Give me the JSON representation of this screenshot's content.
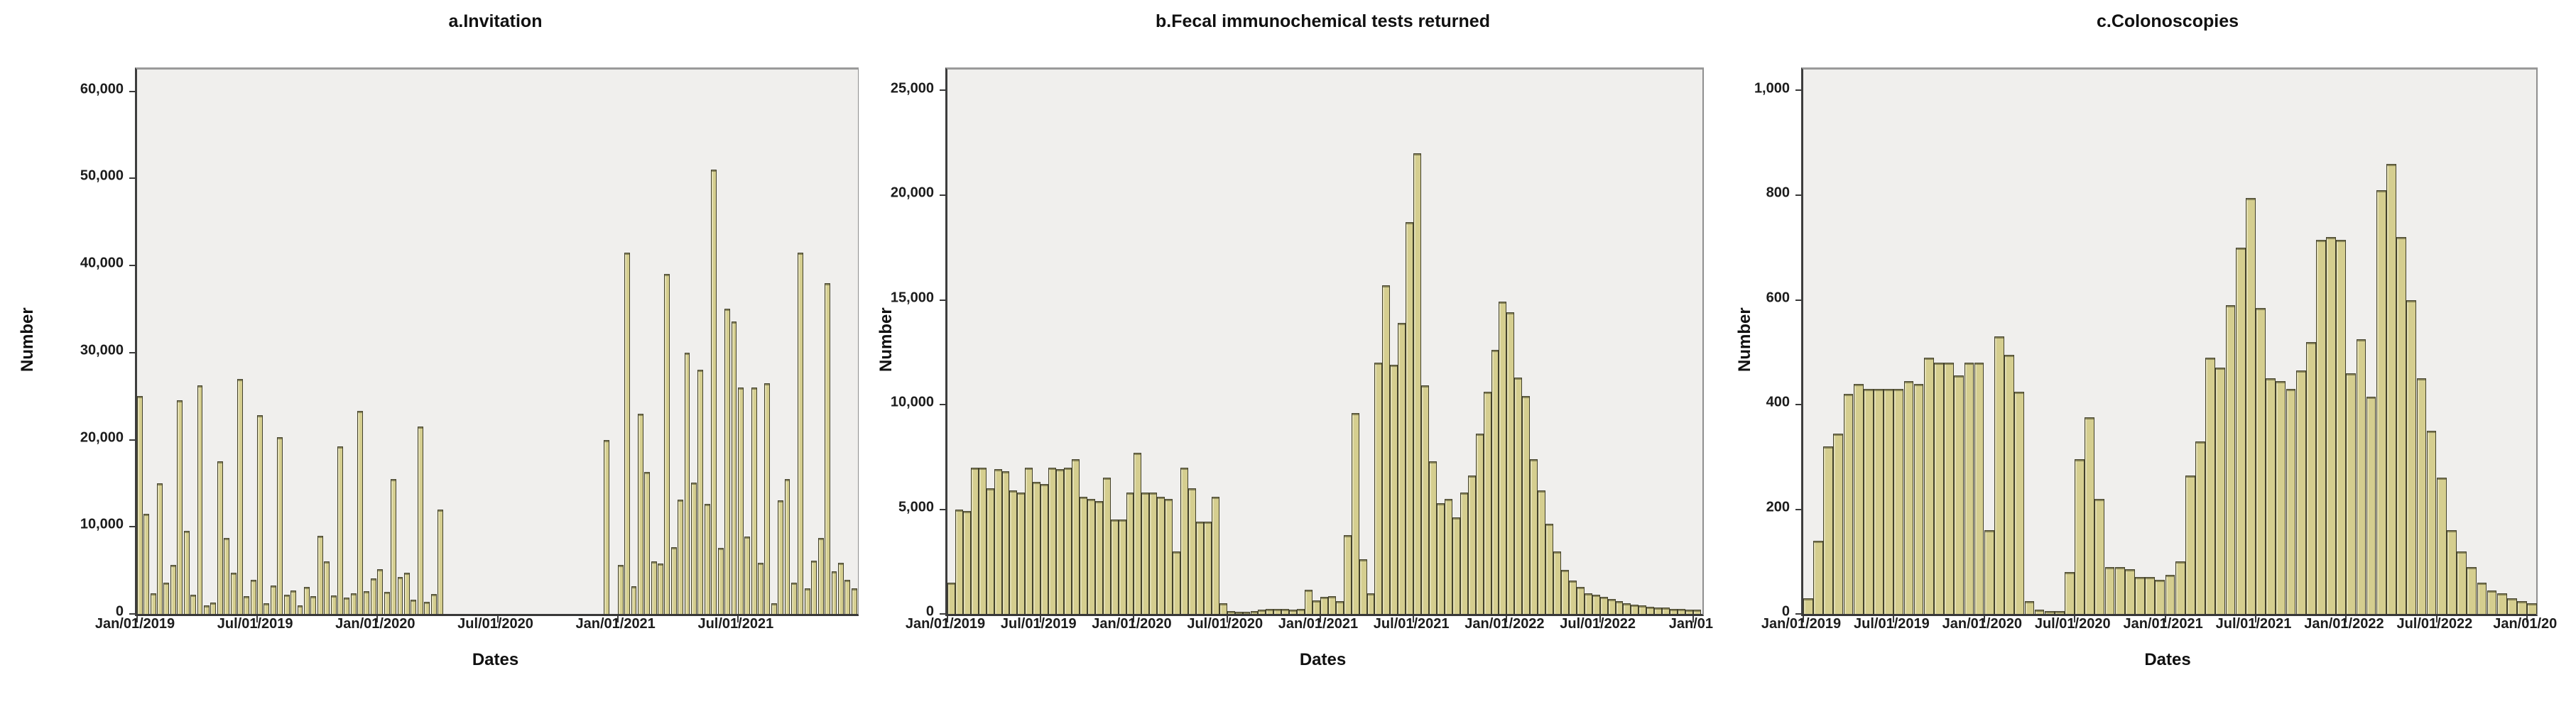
{
  "figure": {
    "kind": "three-panel statistical bar chart (SPSS style)",
    "background": "#ffffff",
    "panel_count": 3
  },
  "styles": {
    "bar_fill": "#d5ce8f",
    "bar_border": "#43412b",
    "plot_background": "#f0efed",
    "frame_color": "#8f8f8f",
    "axis_color": "#3a3a3a",
    "text_color": "#111111"
  },
  "chart_data": [
    {
      "type": "bar",
      "panel": "a",
      "title": "a.Invitation",
      "xlabel": "Dates",
      "ylabel": "Number",
      "ylim": [
        0,
        62500
      ],
      "grid": false,
      "legend": false,
      "x_origin_date": "Jan/01/2019",
      "x_unit": "months since Jan/01/2019",
      "xlim_months": [
        0,
        36
      ],
      "bar_width_months": 0.28,
      "yticks": [
        {
          "v": 60000,
          "label": "60,000"
        },
        {
          "v": 50000,
          "label": "50,000"
        },
        {
          "v": 40000,
          "label": "40,000"
        },
        {
          "v": 30000,
          "label": "30,000"
        },
        {
          "v": 20000,
          "label": "20,000"
        },
        {
          "v": 10000,
          "label": "10,000"
        },
        {
          "v": 0,
          "label": "0"
        }
      ],
      "xticks": [
        {
          "m": 0,
          "label": "Jan/01/2019"
        },
        {
          "m": 6,
          "label": "Jul/01/2019"
        },
        {
          "m": 12,
          "label": "Jan/01/2020"
        },
        {
          "m": 18,
          "label": "Jul/01/2020"
        },
        {
          "m": 24,
          "label": "Jan/01/2021"
        },
        {
          "m": 30,
          "label": "Jul/01/2021"
        }
      ],
      "bars": [
        [
          0,
          25000
        ],
        [
          0.33,
          11500
        ],
        [
          0.67,
          2400
        ],
        [
          1,
          15000
        ],
        [
          1.33,
          3600
        ],
        [
          1.67,
          5600
        ],
        [
          2,
          24500
        ],
        [
          2.33,
          9500
        ],
        [
          2.67,
          2200
        ],
        [
          3,
          26200
        ],
        [
          3.33,
          1000
        ],
        [
          3.67,
          1300
        ],
        [
          4,
          17500
        ],
        [
          4.33,
          8700
        ],
        [
          4.67,
          4700
        ],
        [
          5,
          27000
        ],
        [
          5.33,
          2000
        ],
        [
          5.67,
          3900
        ],
        [
          6,
          22800
        ],
        [
          6.33,
          1200
        ],
        [
          6.67,
          3300
        ],
        [
          7,
          20300
        ],
        [
          7.33,
          2200
        ],
        [
          7.67,
          2700
        ],
        [
          8,
          1000
        ],
        [
          8.33,
          3100
        ],
        [
          8.67,
          2000
        ],
        [
          9,
          9000
        ],
        [
          9.33,
          6000
        ],
        [
          9.67,
          2100
        ],
        [
          10,
          19200
        ],
        [
          10.33,
          1900
        ],
        [
          10.67,
          2400
        ],
        [
          11,
          23300
        ],
        [
          11.33,
          2600
        ],
        [
          11.67,
          4100
        ],
        [
          12,
          5100
        ],
        [
          12.33,
          2500
        ],
        [
          12.67,
          15500
        ],
        [
          13,
          4200
        ],
        [
          13.33,
          4700
        ],
        [
          13.67,
          1600
        ],
        [
          14,
          21500
        ],
        [
          14.33,
          1400
        ],
        [
          14.67,
          2300
        ],
        [
          15,
          12000
        ],
        [
          23.3,
          20000
        ],
        [
          24,
          5600
        ],
        [
          24.33,
          41500
        ],
        [
          24.67,
          3200
        ],
        [
          25,
          23000
        ],
        [
          25.33,
          16300
        ],
        [
          25.67,
          6000
        ],
        [
          26,
          5800
        ],
        [
          26.33,
          39000
        ],
        [
          26.67,
          7700
        ],
        [
          27,
          13100
        ],
        [
          27.33,
          30000
        ],
        [
          27.67,
          15100
        ],
        [
          28,
          28000
        ],
        [
          28.33,
          12600
        ],
        [
          28.67,
          51000
        ],
        [
          29,
          7600
        ],
        [
          29.33,
          35000
        ],
        [
          29.67,
          33600
        ],
        [
          30,
          26000
        ],
        [
          30.33,
          8900
        ],
        [
          30.67,
          26000
        ],
        [
          31,
          5900
        ],
        [
          31.33,
          26500
        ],
        [
          31.67,
          1200
        ],
        [
          32,
          13000
        ],
        [
          32.33,
          15500
        ],
        [
          32.67,
          3600
        ],
        [
          33,
          41500
        ],
        [
          33.33,
          2900
        ],
        [
          33.67,
          6100
        ],
        [
          34,
          8700
        ],
        [
          34.33,
          38000
        ],
        [
          34.67,
          4900
        ],
        [
          35,
          5900
        ],
        [
          35.33,
          3900
        ],
        [
          35.67,
          2900
        ]
      ]
    },
    {
      "type": "bar",
      "panel": "b",
      "title": "b.Fecal immunochemical tests returned",
      "xlabel": "Dates",
      "ylabel": "Number",
      "ylim": [
        0,
        26000
      ],
      "grid": false,
      "legend": false,
      "x_origin_date": "Jan/01/2019",
      "x_unit": "months since Jan/01/2019",
      "xlim_months": [
        0,
        48.6
      ],
      "bar_width_months": 0.5,
      "yticks": [
        {
          "v": 25000,
          "label": "25,000"
        },
        {
          "v": 20000,
          "label": "20,000"
        },
        {
          "v": 15000,
          "label": "15,000"
        },
        {
          "v": 10000,
          "label": "10,000"
        },
        {
          "v": 5000,
          "label": "5,000"
        },
        {
          "v": 0,
          "label": "0"
        }
      ],
      "xticks": [
        {
          "m": 0,
          "label": "Jan/01/2019"
        },
        {
          "m": 6,
          "label": "Jul/01/2019"
        },
        {
          "m": 12,
          "label": "Jan/01/2020"
        },
        {
          "m": 18,
          "label": "Jul/01/2020"
        },
        {
          "m": 24,
          "label": "Jan/01/2021"
        },
        {
          "m": 30,
          "label": "Jul/01/2021"
        },
        {
          "m": 36,
          "label": "Jan/01/2022"
        },
        {
          "m": 42,
          "label": "Jul/01/2022"
        },
        {
          "m": 48,
          "label": "Jan/01"
        }
      ],
      "bars": [
        [
          0,
          1500
        ],
        [
          0.5,
          5000
        ],
        [
          1,
          4900
        ],
        [
          1.5,
          7000
        ],
        [
          2,
          7000
        ],
        [
          2.5,
          6000
        ],
        [
          3,
          6900
        ],
        [
          3.5,
          6800
        ],
        [
          4,
          5900
        ],
        [
          4.5,
          5800
        ],
        [
          5,
          7000
        ],
        [
          5.5,
          6300
        ],
        [
          6,
          6200
        ],
        [
          6.5,
          7000
        ],
        [
          7,
          6900
        ],
        [
          7.5,
          7000
        ],
        [
          8,
          7400
        ],
        [
          8.5,
          5600
        ],
        [
          9,
          5500
        ],
        [
          9.5,
          5400
        ],
        [
          10,
          6500
        ],
        [
          10.5,
          4500
        ],
        [
          11,
          4500
        ],
        [
          11.5,
          5800
        ],
        [
          12,
          7700
        ],
        [
          12.5,
          5800
        ],
        [
          13,
          5800
        ],
        [
          13.5,
          5600
        ],
        [
          14,
          5500
        ],
        [
          14.5,
          3000
        ],
        [
          15,
          7000
        ],
        [
          15.5,
          6000
        ],
        [
          16,
          4400
        ],
        [
          16.5,
          4400
        ],
        [
          17,
          5600
        ],
        [
          17.5,
          500
        ],
        [
          18,
          150
        ],
        [
          18.5,
          100
        ],
        [
          19,
          100
        ],
        [
          19.5,
          150
        ],
        [
          20,
          200
        ],
        [
          20.5,
          250
        ],
        [
          21,
          250
        ],
        [
          21.5,
          250
        ],
        [
          22,
          200
        ],
        [
          22.5,
          250
        ],
        [
          23,
          1150
        ],
        [
          23.5,
          650
        ],
        [
          24,
          800
        ],
        [
          24.5,
          850
        ],
        [
          25,
          600
        ],
        [
          25.5,
          3750
        ],
        [
          26,
          9600
        ],
        [
          26.5,
          2600
        ],
        [
          27,
          1000
        ],
        [
          27.5,
          12000
        ],
        [
          28,
          15700
        ],
        [
          28.5,
          11900
        ],
        [
          29,
          13900
        ],
        [
          29.5,
          18700
        ],
        [
          30,
          22000
        ],
        [
          30.5,
          10900
        ],
        [
          31,
          7300
        ],
        [
          31.5,
          5300
        ],
        [
          32,
          5500
        ],
        [
          32.5,
          4600
        ],
        [
          33,
          5800
        ],
        [
          33.5,
          6600
        ],
        [
          34,
          8600
        ],
        [
          34.5,
          10600
        ],
        [
          35,
          12600
        ],
        [
          35.5,
          14900
        ],
        [
          36,
          14400
        ],
        [
          36.5,
          11300
        ],
        [
          37,
          10400
        ],
        [
          37.5,
          7400
        ],
        [
          38,
          5900
        ],
        [
          38.5,
          4300
        ],
        [
          39,
          3000
        ],
        [
          39.5,
          2100
        ],
        [
          40,
          1600
        ],
        [
          40.5,
          1300
        ],
        [
          41,
          1000
        ],
        [
          41.5,
          900
        ],
        [
          42,
          800
        ],
        [
          42.5,
          700
        ],
        [
          43,
          600
        ],
        [
          43.5,
          500
        ],
        [
          44,
          450
        ],
        [
          44.5,
          400
        ],
        [
          45,
          350
        ],
        [
          45.5,
          300
        ],
        [
          46,
          300
        ],
        [
          46.5,
          250
        ],
        [
          47,
          250
        ],
        [
          47.5,
          200
        ],
        [
          48,
          200
        ]
      ]
    },
    {
      "type": "bar",
      "panel": "c",
      "title": "c.Colonoscopies",
      "xlabel": "Dates",
      "ylabel": "Number",
      "ylim": [
        0,
        1040
      ],
      "grid": false,
      "legend": false,
      "x_origin_date": "Jan/01/2019",
      "x_unit": "months since Jan/01/2019",
      "xlim_months": [
        0,
        48.6
      ],
      "bar_width_months": 0.65,
      "yticks": [
        {
          "v": 1000,
          "label": "1,000"
        },
        {
          "v": 800,
          "label": "800"
        },
        {
          "v": 600,
          "label": "600"
        },
        {
          "v": 400,
          "label": "400"
        },
        {
          "v": 200,
          "label": "200"
        },
        {
          "v": 0,
          "label": "0"
        }
      ],
      "xticks": [
        {
          "m": 0,
          "label": "Jan/01/2019"
        },
        {
          "m": 6,
          "label": "Jul/01/2019"
        },
        {
          "m": 12,
          "label": "Jan/01/2020"
        },
        {
          "m": 18,
          "label": "Jul/01/2020"
        },
        {
          "m": 24,
          "label": "Jan/01/2021"
        },
        {
          "m": 30,
          "label": "Jul/01/2021"
        },
        {
          "m": 36,
          "label": "Jan/01/2022"
        },
        {
          "m": 42,
          "label": "Jul/01/2022"
        },
        {
          "m": 48,
          "label": "Jan/01/20"
        }
      ],
      "bars": [
        [
          0,
          30
        ],
        [
          0.67,
          140
        ],
        [
          1.33,
          320
        ],
        [
          2,
          345
        ],
        [
          2.67,
          420
        ],
        [
          3.33,
          440
        ],
        [
          4,
          430
        ],
        [
          4.67,
          430
        ],
        [
          5.33,
          430
        ],
        [
          6,
          430
        ],
        [
          6.67,
          445
        ],
        [
          7.33,
          440
        ],
        [
          8,
          490
        ],
        [
          8.67,
          480
        ],
        [
          9.33,
          480
        ],
        [
          10,
          455
        ],
        [
          10.67,
          480
        ],
        [
          11.33,
          480
        ],
        [
          12,
          160
        ],
        [
          12.67,
          530
        ],
        [
          13.33,
          495
        ],
        [
          14,
          425
        ],
        [
          14.67,
          25
        ],
        [
          15.33,
          8
        ],
        [
          16,
          5
        ],
        [
          16.67,
          5
        ],
        [
          17.33,
          80
        ],
        [
          18,
          295
        ],
        [
          18.67,
          375
        ],
        [
          19.33,
          220
        ],
        [
          20,
          90
        ],
        [
          20.67,
          90
        ],
        [
          21.33,
          85
        ],
        [
          22,
          70
        ],
        [
          22.67,
          70
        ],
        [
          23.33,
          65
        ],
        [
          24,
          75
        ],
        [
          24.67,
          100
        ],
        [
          25.33,
          265
        ],
        [
          26,
          330
        ],
        [
          26.67,
          490
        ],
        [
          27.33,
          470
        ],
        [
          28,
          590
        ],
        [
          28.67,
          700
        ],
        [
          29.33,
          795
        ],
        [
          30,
          585
        ],
        [
          30.67,
          450
        ],
        [
          31.33,
          445
        ],
        [
          32,
          430
        ],
        [
          32.67,
          465
        ],
        [
          33.33,
          520
        ],
        [
          34,
          715
        ],
        [
          34.67,
          720
        ],
        [
          35.33,
          715
        ],
        [
          36,
          460
        ],
        [
          36.67,
          525
        ],
        [
          37.33,
          415
        ],
        [
          38,
          810
        ],
        [
          38.67,
          860
        ],
        [
          39.33,
          720
        ],
        [
          40,
          600
        ],
        [
          40.67,
          450
        ],
        [
          41.33,
          350
        ],
        [
          42,
          260
        ],
        [
          42.67,
          160
        ],
        [
          43.33,
          120
        ],
        [
          44,
          90
        ],
        [
          44.67,
          60
        ],
        [
          45.33,
          45
        ],
        [
          46,
          40
        ],
        [
          46.67,
          30
        ],
        [
          47.33,
          25
        ],
        [
          48,
          20
        ]
      ]
    }
  ]
}
